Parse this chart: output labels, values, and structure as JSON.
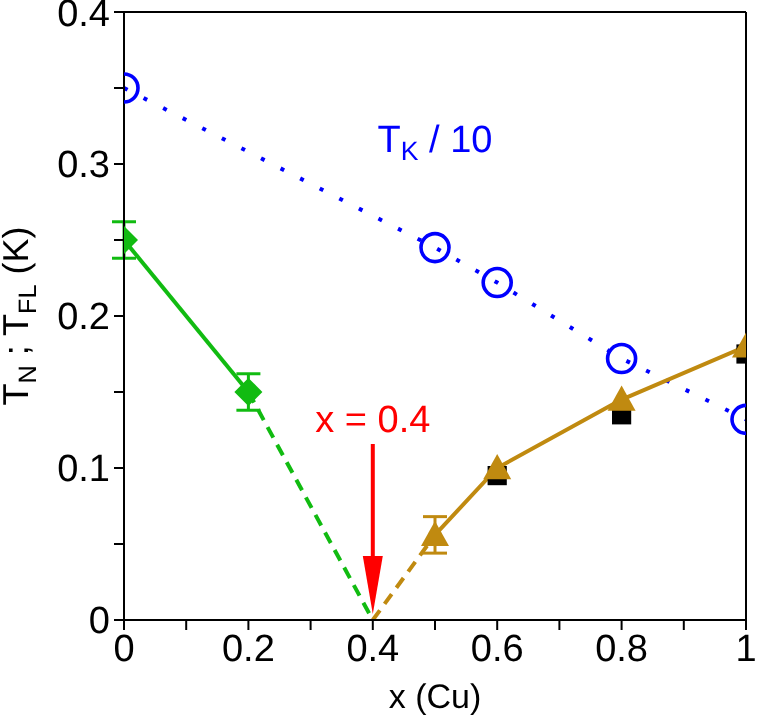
{
  "chart_data": {
    "type": "line",
    "xlabel": "x (Cu)",
    "ylabel": "T$_{N}$ ; T$_{FL}$ (K)",
    "xlim": [
      0,
      1
    ],
    "xticks": [
      0,
      {
        "value": 0.1,
        "label": null
      },
      0.2,
      {
        "value": 0.3,
        "label": null
      },
      0.4,
      {
        "value": 0.5,
        "label": null
      },
      0.6,
      {
        "value": 0.7,
        "label": null
      },
      0.8,
      {
        "value": 0.9,
        "label": null
      },
      1
    ],
    "ylim": [
      0,
      0.4
    ],
    "yticks": [
      0,
      {
        "value": 0.05,
        "label": null
      },
      0.1,
      {
        "value": 0.15,
        "label": null
      },
      0.2,
      {
        "value": 0.25,
        "label": null
      },
      0.3,
      {
        "value": 0.35,
        "label": null
      },
      0.4
    ],
    "grid": false,
    "annotations": [
      "x = 0.4"
    ],
    "series": [
      {
        "name": "T$_{K}$ / 10",
        "color": "#0000ff",
        "marker": "circle",
        "line_style": "dotted",
        "x": [
          0,
          0.5,
          0.6,
          0.8,
          1
        ],
        "values": [
          0.35,
          0.245,
          0.222,
          0.172,
          0.132
        ]
      },
      {
        "color": "#11bb11",
        "marker": "diamond",
        "line_style": "solid",
        "x": [
          0,
          0.2
        ],
        "values": [
          0.25,
          0.15
        ],
        "errors": [
          0.012,
          0.012
        ]
      },
      {
        "color": "#11bb11",
        "marker": "none",
        "line_style": "dashed",
        "x": [
          0.2,
          0.4
        ],
        "values": [
          0.15,
          0
        ]
      },
      {
        "color": "#c08a10",
        "marker": "triangle",
        "line_style": "solid",
        "x": [
          0.5,
          0.6,
          0.8,
          1
        ],
        "values": [
          0.056,
          0.1,
          0.145,
          0.18
        ],
        "errors": [
          0.012,
          null,
          null,
          null
        ]
      },
      {
        "color": "#c08a10",
        "marker": "none",
        "line_style": "dashed",
        "x": [
          0.4,
          0.5
        ],
        "values": [
          0,
          0.056
        ]
      },
      {
        "type": "scatter",
        "color": "#000000",
        "marker": "square",
        "x": [
          0.6,
          0.8,
          1
        ],
        "values": [
          0.095,
          0.135,
          0.175
        ]
      }
    ]
  }
}
